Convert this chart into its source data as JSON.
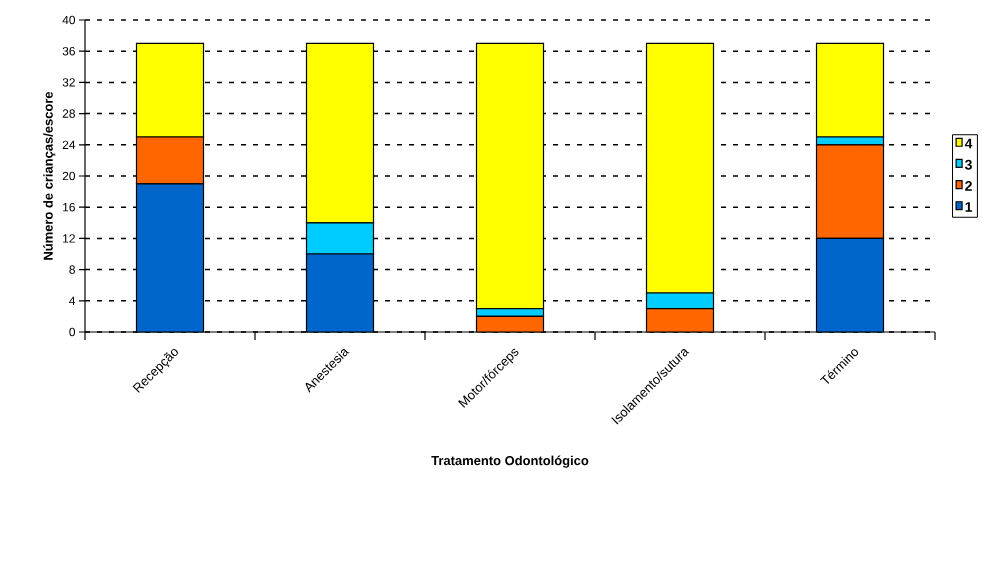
{
  "chart_data": {
    "type": "bar",
    "stacked": true,
    "xlabel": "Tratamento Odontológico",
    "ylabel": "Número de crianças/escore",
    "categories": [
      "Recepção",
      "Anestesia",
      "Motor/fórceps",
      "Isolamento/sutura",
      "Término"
    ],
    "series": [
      {
        "name": "1",
        "color": "#0066cc",
        "values": [
          19,
          10,
          0,
          0,
          12
        ]
      },
      {
        "name": "2",
        "color": "#ff6600",
        "values": [
          6,
          0,
          2,
          3,
          12
        ]
      },
      {
        "name": "3",
        "color": "#00ccff",
        "values": [
          0,
          4,
          1,
          2,
          1
        ]
      },
      {
        "name": "4",
        "color": "#ffff00",
        "values": [
          12,
          23,
          34,
          32,
          12
        ]
      }
    ],
    "ylim": [
      0,
      40
    ],
    "yticks": [
      0,
      4,
      8,
      12,
      16,
      20,
      24,
      28,
      32,
      36,
      40
    ],
    "grid": "y",
    "legend": "right"
  }
}
